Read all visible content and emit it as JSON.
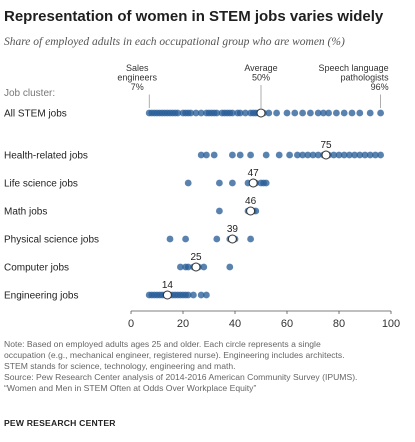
{
  "title": "Representation of women in STEM jobs varies widely",
  "subtitle": "Share of employed adults in each occupational group who are women (%)",
  "notes": {
    "note": [
      "Note: Based on employed adults ages 25 and older. Each circle represents a single",
      "occupation (e.g., mechanical engineer, registered nurse). Engineering includes architects.",
      "STEM stands for science, technology, engineering and math."
    ],
    "source": [
      "Source: Pew Research Center analysis of 2014-2016 American Community Survey (IPUMS).",
      "“Women and Men in STEM Often at Odds Over Workplace Equity”"
    ]
  },
  "brand": "PEW RESEARCH CENTER",
  "colors": {
    "dot": "#2a5f98",
    "dot_opacity": 0.78,
    "axis": "#555555",
    "average_fill": "#ffffff",
    "average_stroke": "#333333"
  },
  "chart_data": {
    "type": "scatter",
    "xlim": [
      0,
      100
    ],
    "xticks": [
      0,
      20,
      40,
      60,
      80,
      100
    ],
    "grid": false,
    "cluster_header": "Job cluster:",
    "rows": [
      {
        "label": "All STEM jobs",
        "average": 50,
        "show_average_label": false,
        "values": [
          7,
          8,
          9,
          10,
          11,
          12,
          13,
          14,
          15,
          16,
          17,
          18,
          20,
          21,
          22,
          23,
          25,
          27,
          29,
          30,
          31,
          32,
          33,
          35,
          36,
          37,
          38,
          39,
          41,
          42,
          44,
          46,
          47,
          48,
          49,
          51,
          53,
          56,
          60,
          63,
          66,
          69,
          72,
          74,
          76,
          79,
          82,
          85,
          88,
          92,
          96
        ]
      },
      {
        "label": "Health-related jobs",
        "average": 75,
        "show_average_label": true,
        "values": [
          27,
          29,
          32,
          39,
          42,
          46,
          52,
          57,
          61,
          64,
          66,
          68,
          70,
          72,
          74,
          76,
          78,
          80,
          82,
          84,
          86,
          88,
          90,
          92,
          94,
          96
        ]
      },
      {
        "label": "Life science jobs",
        "average": 47,
        "show_average_label": true,
        "values": [
          22,
          34,
          39,
          45,
          48,
          50,
          51,
          52
        ]
      },
      {
        "label": "Math jobs",
        "average": 46,
        "show_average_label": true,
        "values": [
          34,
          45,
          47,
          48
        ]
      },
      {
        "label": "Physical science jobs",
        "average": 39,
        "show_average_label": true,
        "values": [
          15,
          21,
          33,
          38,
          40,
          46
        ]
      },
      {
        "label": "Computer jobs",
        "average": 25,
        "show_average_label": true,
        "values": [
          19,
          21,
          22,
          24,
          26,
          28,
          38
        ]
      },
      {
        "label": "Engineering jobs",
        "average": 14,
        "show_average_label": true,
        "values": [
          7,
          8,
          9,
          10,
          11,
          12,
          13,
          15,
          16,
          17,
          18,
          19,
          20,
          21,
          22,
          24,
          27,
          29
        ]
      }
    ],
    "annotations": [
      {
        "lines": [
          "Sales",
          "engineers",
          "7%"
        ],
        "x": 7,
        "align": "start"
      },
      {
        "lines": [
          "Average",
          "50%"
        ],
        "x": 50,
        "align": "middle"
      },
      {
        "lines": [
          "Speech language",
          "pathologists",
          "96%"
        ],
        "x": 96,
        "align": "end"
      }
    ]
  }
}
